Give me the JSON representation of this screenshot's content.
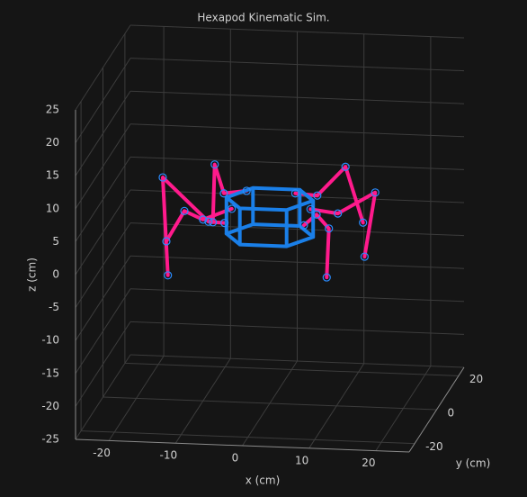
{
  "chart_data": {
    "type": "line3d",
    "title": "Hexapod Kinematic Sim.",
    "xlabel": "x (cm)",
    "ylabel": "y (cm)",
    "zlabel": "z (cm)",
    "xlim": [
      -25,
      25
    ],
    "ylim": [
      -25,
      25
    ],
    "zlim": [
      -25,
      25
    ],
    "xticks": [
      -20,
      -10,
      0,
      10,
      20
    ],
    "yticks": [
      -20,
      0,
      20
    ],
    "zticks": [
      -25,
      -20,
      -15,
      -10,
      -5,
      0,
      5,
      10,
      15,
      20,
      25
    ],
    "grid": true,
    "series": [
      {
        "color": "#ff1a8c",
        "marker": "o",
        "x": [
          -6.3,
          -8.2,
          -14.4,
          -13.3
        ],
        "y": [
          -3,
          -6,
          -10,
          -12
        ],
        "z": [
          2.9,
          3.8,
          11.3,
          -3.0
        ]
      },
      {
        "color": "#ff1a8c",
        "marker": "o",
        "x": [
          -5.7,
          -10.0,
          -12.8,
          -15.5
        ],
        "y": [
          0,
          0,
          0,
          0
        ],
        "z": [
          4.3,
          2.5,
          3.7,
          -1.0
        ]
      },
      {
        "color": "#ff1a8c",
        "marker": "o",
        "x": [
          -4.3,
          -8.2,
          -9.9,
          -10.5
        ],
        "y": [
          5,
          8,
          10,
          12
        ],
        "z": [
          5.8,
          4.5,
          8.3,
          -1.0
        ]
      },
      {
        "color": "#ff1a8c",
        "marker": "o",
        "x": [
          5.6,
          8.0,
          10.5,
          10.5
        ],
        "y": [
          -3,
          -6,
          -10,
          -12
        ],
        "z": [
          3.0,
          5.5,
          4.5,
          -2.4
        ]
      },
      {
        "color": "#ff1a8c",
        "marker": "o",
        "x": [
          6.1,
          10.2,
          15.8,
          14.2
        ],
        "y": [
          0,
          0,
          0,
          0
        ],
        "z": [
          4.7,
          4.2,
          7.6,
          -2.2
        ]
      },
      {
        "color": "#ff1a8c",
        "marker": "o",
        "x": [
          3.0,
          5.8,
          9.7,
          12.0
        ],
        "y": [
          5,
          8,
          10,
          12
        ],
        "z": [
          5.7,
          4.7,
          8.7,
          -0.2
        ]
      },
      {
        "color": "#1a7fe8",
        "x": [
          -6.5,
          -3.5,
          3.5,
          6.5,
          3.5,
          -3.5,
          -6.5,
          null,
          -6.5,
          -3.5,
          3.5,
          6.5,
          3.5,
          -3.5,
          -6.5,
          null,
          -6.5,
          -6.5,
          null,
          -3.5,
          -3.5,
          null,
          3.5,
          3.5,
          null,
          6.5,
          6.5,
          null,
          3.5,
          3.5,
          null,
          -3.5,
          -3.5
        ],
        "y": [
          0,
          6,
          6,
          0,
          -6,
          -6,
          0,
          null,
          0,
          6,
          6,
          0,
          -6,
          -6,
          0,
          null,
          0,
          0,
          null,
          6,
          6,
          null,
          6,
          6,
          null,
          0,
          0,
          null,
          -6,
          -6,
          null,
          -6,
          -6
        ],
        "z": [
          6,
          6,
          6,
          6,
          6,
          6,
          6,
          null,
          0.5,
          0.5,
          0.5,
          0.5,
          0.5,
          0.5,
          0.5,
          null,
          6,
          0.5,
          null,
          6,
          0.5,
          null,
          6,
          0.5,
          null,
          6,
          0.5,
          null,
          6,
          0.5,
          null,
          6,
          0.5
        ]
      }
    ]
  }
}
